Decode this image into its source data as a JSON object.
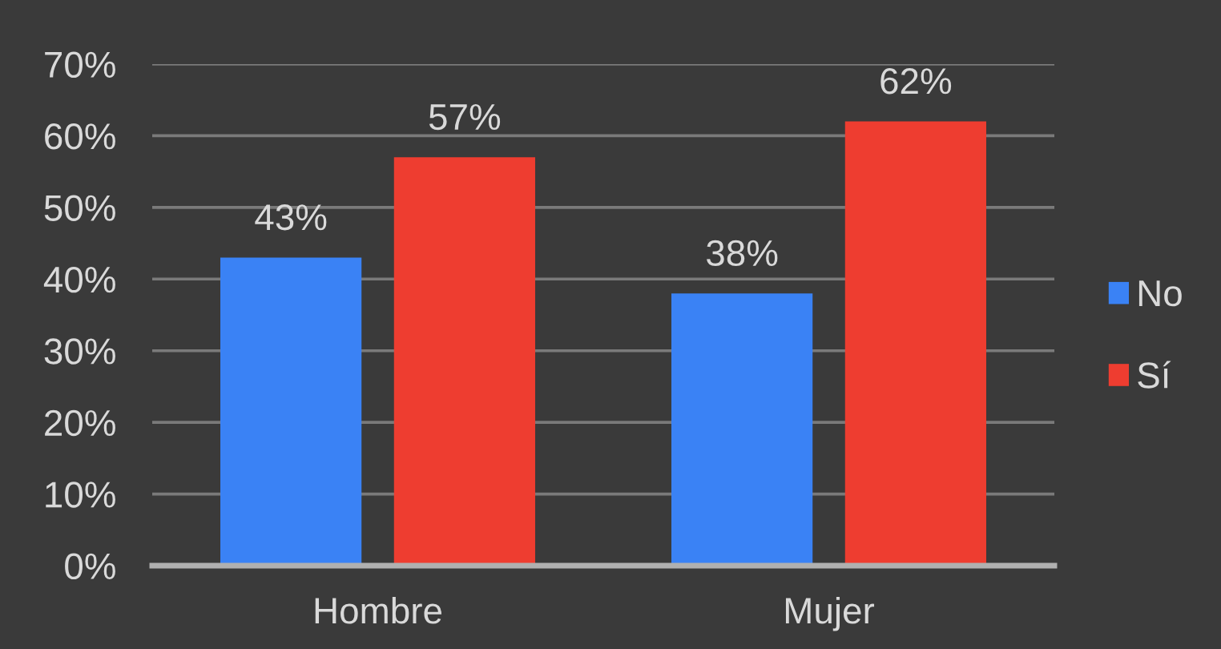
{
  "chart_data": {
    "type": "bar",
    "categories": [
      "Hombre",
      "Mujer"
    ],
    "series": [
      {
        "name": "No",
        "color": "#3a82f5",
        "values": [
          43,
          38
        ],
        "value_labels": [
          "43%",
          "38%"
        ]
      },
      {
        "name": "Sí",
        "color": "#ee3d30",
        "values": [
          57,
          62
        ],
        "value_labels": [
          "57%",
          "62%"
        ]
      }
    ],
    "ylim": [
      0,
      70
    ],
    "yticks": [
      {
        "value": 0,
        "label": "0%"
      },
      {
        "value": 10,
        "label": "10%"
      },
      {
        "value": 20,
        "label": "20%"
      },
      {
        "value": 30,
        "label": "30%"
      },
      {
        "value": 40,
        "label": "40%"
      },
      {
        "value": 50,
        "label": "50%"
      },
      {
        "value": 60,
        "label": "60%"
      },
      {
        "value": 70,
        "label": "70%"
      }
    ],
    "grid": "y",
    "legend": "right"
  }
}
